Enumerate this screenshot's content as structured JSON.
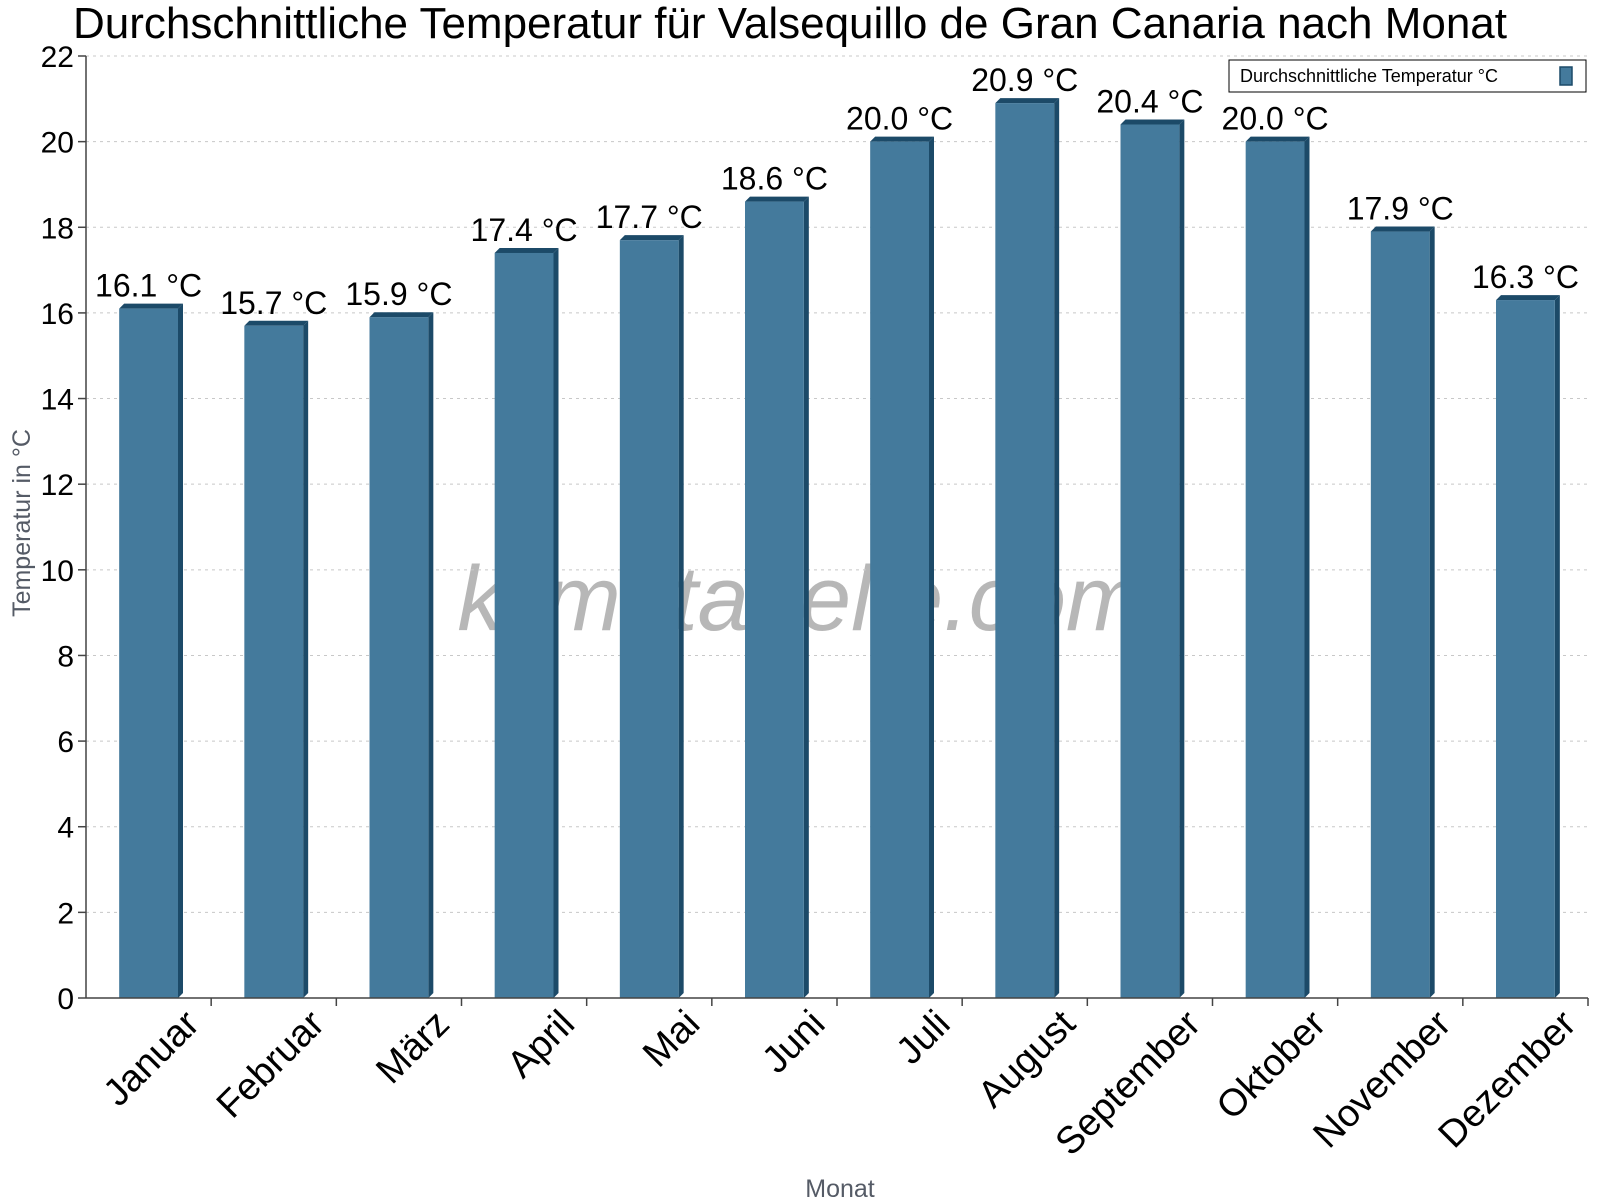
{
  "chart_data": {
    "type": "bar",
    "title": "Durchschnittliche Temperatur für Valsequillo de Gran Canaria nach Monat",
    "xlabel": "Monat",
    "ylabel": "Temperatur in °C",
    "ylim": [
      0,
      22
    ],
    "yticks": [
      "0",
      "2",
      "4",
      "6",
      "8",
      "10",
      "12",
      "14",
      "16",
      "18",
      "20",
      "22"
    ],
    "grid": true,
    "legend_position": "top-right",
    "categories": [
      "Januar",
      "Februar",
      "März",
      "April",
      "Mai",
      "Juni",
      "Juli",
      "August",
      "September",
      "Oktober",
      "November",
      "Dezember"
    ],
    "series": [
      {
        "name": "Durchschnittliche Temperatur °C",
        "values": [
          16.1,
          15.7,
          15.9,
          17.4,
          17.7,
          18.6,
          20.0,
          20.9,
          20.4,
          20.0,
          17.9,
          16.3
        ],
        "labels": [
          "16.1 °C",
          "15.7 °C",
          "15.9 °C",
          "17.4 °C",
          "17.7 °C",
          "18.6 °C",
          "20.0 °C",
          "20.9 °C",
          "20.4 °C",
          "20.0 °C",
          "17.9 °C",
          "16.3 °C"
        ],
        "color": "#447a9c",
        "edge_color": "#1c4a68"
      }
    ]
  },
  "watermark": "klimatabelle.com"
}
